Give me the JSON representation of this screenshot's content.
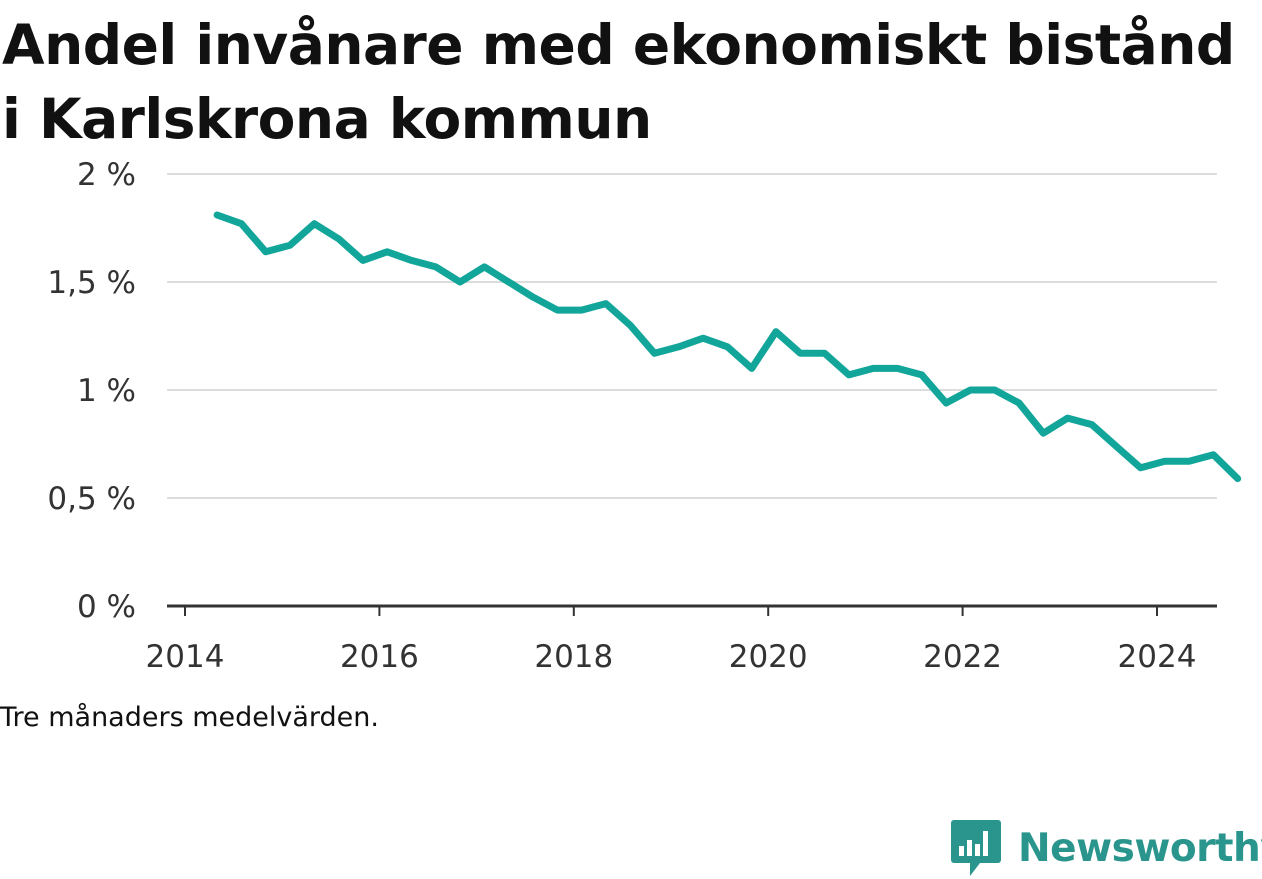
{
  "header": {
    "title": "Andel invånare med ekonomiskt bistånd i Karlskrona kommun"
  },
  "footer": {
    "note": "Tre månaders medelvärden.",
    "brand": "Newsworthy"
  },
  "icons": {
    "brand_logo": "bar-chart-speech-bubble-icon"
  },
  "colors": {
    "line": "#12a59a",
    "brand": "#2a958c"
  },
  "chart_data": {
    "type": "line",
    "title": "Andel invånare med ekonomiskt bistånd i Karlskrona kommun",
    "xlabel": "",
    "ylabel": "",
    "grid": true,
    "xlim": [
      2014,
      2025.3
    ],
    "ylim": [
      0,
      2
    ],
    "x_ticks": [
      {
        "value": 2014,
        "label": "2014"
      },
      {
        "value": 2016,
        "label": "2016"
      },
      {
        "value": 2018,
        "label": "2018"
      },
      {
        "value": 2020,
        "label": "2020"
      },
      {
        "value": 2022,
        "label": "2022"
      },
      {
        "value": 2024,
        "label": "2024"
      }
    ],
    "y_ticks": [
      {
        "value": 0,
        "label": "0 %"
      },
      {
        "value": 0.5,
        "label": "0,5 %"
      },
      {
        "value": 1,
        "label": "1 %"
      },
      {
        "value": 1.5,
        "label": "1,5 %"
      },
      {
        "value": 2,
        "label": "2 %"
      }
    ],
    "series": [
      {
        "x": [
          2014.33,
          2014.58,
          2014.83,
          2015.08,
          2015.33,
          2015.58,
          2015.83,
          2016.08,
          2016.33,
          2016.58,
          2016.83,
          2017.08,
          2017.33,
          2017.58,
          2017.83,
          2018.08,
          2018.33,
          2018.58,
          2018.83,
          2019.08,
          2019.33,
          2019.58,
          2019.83,
          2020.08,
          2020.33,
          2020.58,
          2020.83,
          2021.08,
          2021.33,
          2021.58,
          2021.83,
          2022.08,
          2022.33,
          2022.58,
          2022.83,
          2023.08,
          2023.33,
          2023.58,
          2023.83,
          2024.08,
          2024.33,
          2024.58,
          2024.83
        ],
        "values": [
          1.81,
          1.77,
          1.64,
          1.67,
          1.77,
          1.7,
          1.6,
          1.64,
          1.6,
          1.57,
          1.5,
          1.57,
          1.5,
          1.43,
          1.37,
          1.37,
          1.4,
          1.3,
          1.17,
          1.2,
          1.24,
          1.2,
          1.1,
          1.27,
          1.17,
          1.17,
          1.07,
          1.1,
          1.1,
          1.07,
          0.94,
          1.0,
          1.0,
          0.94,
          0.8,
          0.87,
          0.84,
          0.74,
          0.64,
          0.67,
          0.67,
          0.7,
          0.59
        ]
      }
    ]
  }
}
